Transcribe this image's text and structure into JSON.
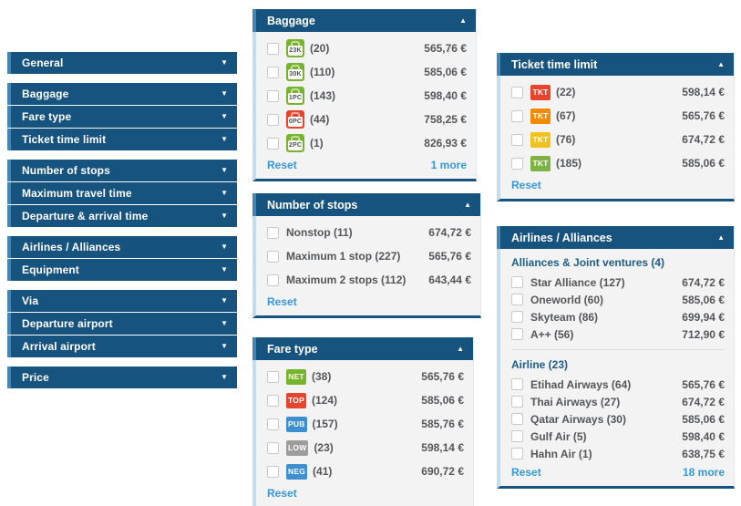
{
  "ui": {
    "expand_icon": "▼",
    "collapse_icon": "▲",
    "accent_dark_blue": "#17537f",
    "accent_light_blue": "#4286b4",
    "link_blue": "#3498db"
  },
  "sidebar": {
    "groups": [
      {
        "items": [
          {
            "label": "General"
          }
        ]
      },
      {
        "items": [
          {
            "label": "Baggage"
          },
          {
            "label": "Fare type"
          },
          {
            "label": "Ticket time limit"
          }
        ]
      },
      {
        "items": [
          {
            "label": "Number of stops"
          },
          {
            "label": "Maximum travel time"
          },
          {
            "label": "Departure & arrival time"
          }
        ]
      },
      {
        "items": [
          {
            "label": "Airlines / Alliances"
          },
          {
            "label": "Equipment"
          }
        ]
      },
      {
        "items": [
          {
            "label": "Via"
          },
          {
            "label": "Departure airport"
          },
          {
            "label": "Arrival airport"
          }
        ]
      },
      {
        "items": [
          {
            "label": "Price"
          }
        ]
      }
    ]
  },
  "panels": {
    "baggage": {
      "title": "Baggage",
      "rows": [
        {
          "badge": "23K",
          "badge_color": "#77b32c",
          "label": "(20)",
          "price": "565,76 €"
        },
        {
          "badge": "30K",
          "badge_color": "#77b32c",
          "label": "(110)",
          "price": "585,06 €"
        },
        {
          "badge": "1PC",
          "badge_color": "#77b32c",
          "label": "(143)",
          "price": "598,40 €"
        },
        {
          "badge": "0PC",
          "badge_color": "#e8432d",
          "label": "(44)",
          "price": "758,25 €"
        },
        {
          "badge": "2PC",
          "badge_color": "#77b32c",
          "label": "(1)",
          "price": "826,93 €"
        }
      ],
      "reset_label": "Reset",
      "more_label": "1 more"
    },
    "stops": {
      "title": "Number of stops",
      "rows": [
        {
          "label": "Nonstop (11)",
          "price": "674,72 €"
        },
        {
          "label": "Maximum 1 stop (227)",
          "price": "565,76 €"
        },
        {
          "label": "Maximum 2 stops (112)",
          "price": "643,44 €"
        }
      ],
      "reset_label": "Reset"
    },
    "fare": {
      "title": "Fare type",
      "rows": [
        {
          "badge": "NET",
          "badge_color": "#77b32c",
          "label": "(38)",
          "price": "565,76 €"
        },
        {
          "badge": "TOP",
          "badge_color": "#e8432d",
          "label": "(124)",
          "price": "585,06 €"
        },
        {
          "badge": "PUB",
          "badge_color": "#3d8fd1",
          "label": "(157)",
          "price": "585,76 €"
        },
        {
          "badge": "LOW",
          "badge_color": "#9d9d9d",
          "label": "(23)",
          "price": "598,14 €"
        },
        {
          "badge": "NEG",
          "badge_color": "#3d8fd1",
          "label": "(41)",
          "price": "690,72 €"
        }
      ],
      "reset_label": "Reset"
    },
    "ttl": {
      "title": "Ticket time limit",
      "rows": [
        {
          "badge": "TKT",
          "badge_color": "#e8432d",
          "label": "(22)",
          "price": "598,14 €"
        },
        {
          "badge": "TKT",
          "badge_color": "#f28b00",
          "label": "(67)",
          "price": "565,76 €"
        },
        {
          "badge": "TKT",
          "badge_color": "#f2c11d",
          "label": "(76)",
          "price": "674,72 €"
        },
        {
          "badge": "TKT",
          "badge_color": "#7cb342",
          "label": "(185)",
          "price": "585,06 €"
        }
      ],
      "reset_label": "Reset"
    },
    "airlines": {
      "title": "Airlines / Alliances",
      "sections": [
        {
          "header": "Alliances & Joint ventures (4)",
          "rows": [
            {
              "label": "Star Alliance (127)",
              "price": "674,72 €"
            },
            {
              "label": "Oneworld (60)",
              "price": "585,06 €"
            },
            {
              "label": "Skyteam (86)",
              "price": "699,94 €"
            },
            {
              "label": "A++ (56)",
              "price": "712,90 €"
            }
          ]
        },
        {
          "header": "Airline (23)",
          "rows": [
            {
              "label": "Etihad Airways (64)",
              "price": "565,76 €"
            },
            {
              "label": "Thai Airways (27)",
              "price": "674,72 €"
            },
            {
              "label": "Qatar Airways (30)",
              "price": "585,06 €"
            },
            {
              "label": "Gulf Air (5)",
              "price": "598,40 €"
            },
            {
              "label": "Hahn Air (1)",
              "price": "638,75 €"
            }
          ]
        }
      ],
      "reset_label": "Reset",
      "more_label": "18 more"
    }
  }
}
